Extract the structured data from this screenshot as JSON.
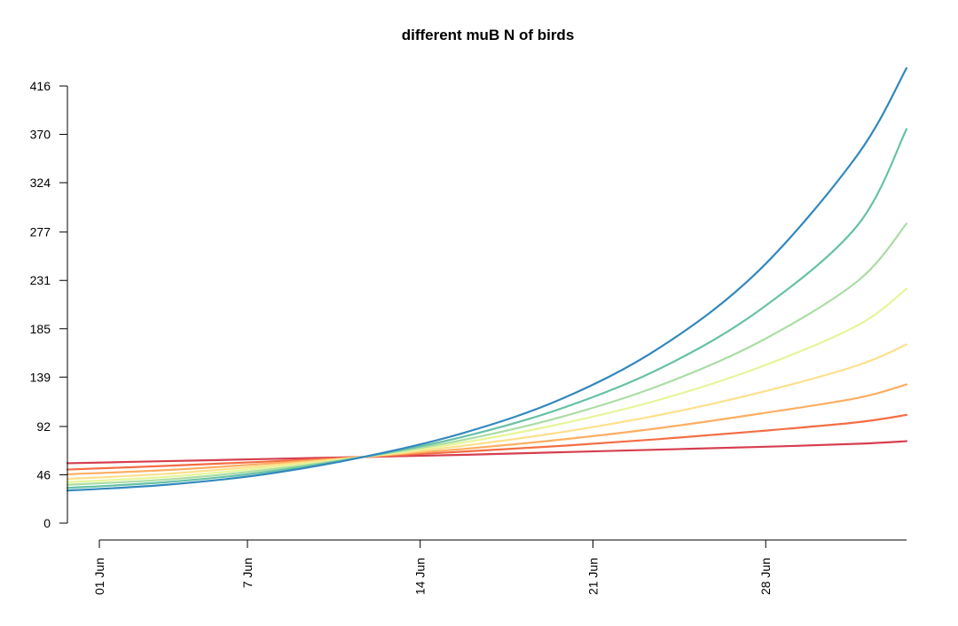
{
  "chart_data": {
    "type": "line",
    "title": "different muB N of birds",
    "xlabel": "",
    "ylabel": "",
    "grid": false,
    "x_axis": {
      "type": "date",
      "range": [
        "2023-06-01",
        "2023-07-05"
      ],
      "ticks": [
        {
          "date": "2023-06-01",
          "label": "01 Jun"
        },
        {
          "date": "2023-06-07",
          "label": "7 Jun"
        },
        {
          "date": "2023-06-14",
          "label": "14 Jun"
        },
        {
          "date": "2023-06-21",
          "label": "21 Jun"
        },
        {
          "date": "2023-06-28",
          "label": "28 Jun"
        }
      ]
    },
    "y_axis": {
      "range": [
        0,
        416
      ],
      "ticks": [
        0,
        46,
        92,
        139,
        185,
        231,
        277,
        324,
        370,
        416
      ]
    },
    "x": [
      "2023-06-01",
      "2023-06-05",
      "2023-06-09",
      "2023-06-13",
      "2023-06-17",
      "2023-06-21",
      "2023-06-25",
      "2023-06-29",
      "2023-07-03",
      "2023-07-05"
    ],
    "series": [
      {
        "color": "#d53e4f",
        "values": [
          57.0,
          59.0,
          61.0,
          63.0,
          65.0,
          67.5,
          70.0,
          72.5,
          75.5,
          78.0
        ]
      },
      {
        "color": "#f46d43",
        "values": [
          51.0,
          54.5,
          58.5,
          63.0,
          68.0,
          73.5,
          80.0,
          87.5,
          96.0,
          103.0
        ]
      },
      {
        "color": "#fdae61",
        "values": [
          46.5,
          50.5,
          56.5,
          63.0,
          70.5,
          79.5,
          90.5,
          104.0,
          119.0,
          132.0
        ]
      },
      {
        "color": "#fee08b",
        "values": [
          42.0,
          47.0,
          54.5,
          63.0,
          73.5,
          86.5,
          103.0,
          124.0,
          150.0,
          170.0
        ]
      },
      {
        "color": "#e6f598",
        "values": [
          39.0,
          44.0,
          52.5,
          63.0,
          76.5,
          94.5,
          117.5,
          148.0,
          188.0,
          223.0
        ]
      },
      {
        "color": "#abdda4",
        "values": [
          36.5,
          41.5,
          50.5,
          63.0,
          79.0,
          101.0,
          131.0,
          172.0,
          230.0,
          285.0
        ]
      },
      {
        "color": "#66c2a5",
        "values": [
          33.5,
          39.0,
          48.5,
          63.0,
          82.0,
          109.0,
          147.0,
          202.0,
          283.0,
          375.0
        ]
      },
      {
        "color": "#3288bd",
        "values": [
          31.0,
          36.5,
          46.5,
          63.0,
          85.5,
          118.0,
          167.0,
          240.0,
          350.0,
          433.0
        ]
      }
    ]
  }
}
